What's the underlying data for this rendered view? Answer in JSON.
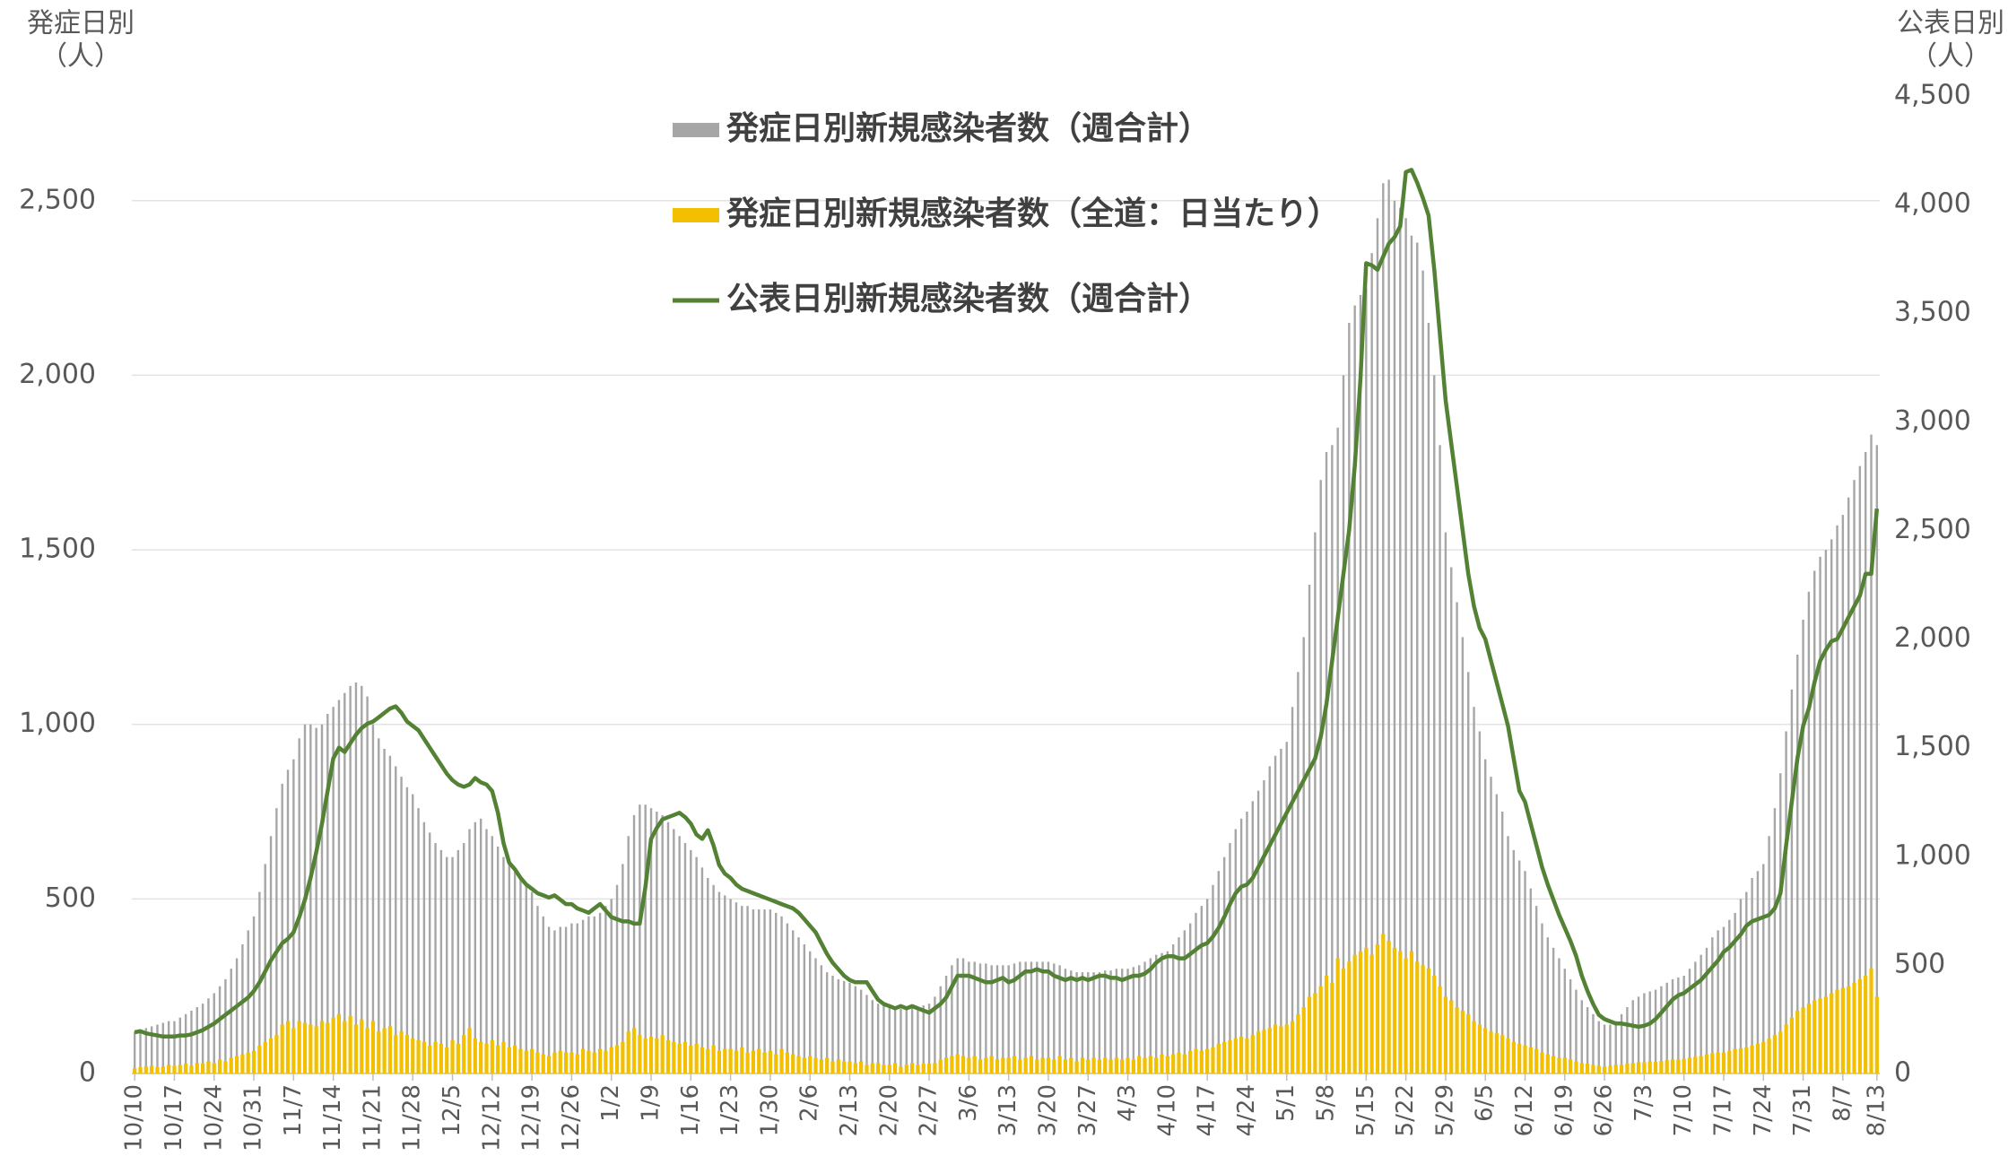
{
  "chart_data": {
    "type": "bar",
    "y_label": [
      "発症日別",
      "（人）"
    ],
    "y2_label": [
      "公表日別",
      "（人）"
    ],
    "categories": [
      "10/10",
      null,
      null,
      null,
      null,
      null,
      null,
      "10/17",
      null,
      null,
      null,
      null,
      null,
      null,
      "10/24",
      null,
      null,
      null,
      null,
      null,
      null,
      "10/31",
      null,
      null,
      null,
      null,
      null,
      null,
      "11/7",
      null,
      null,
      null,
      null,
      null,
      null,
      "11/14",
      null,
      null,
      null,
      null,
      null,
      null,
      "11/21",
      null,
      null,
      null,
      null,
      null,
      null,
      "11/28",
      null,
      null,
      null,
      null,
      null,
      null,
      "12/5",
      null,
      null,
      null,
      null,
      null,
      null,
      "12/12",
      null,
      null,
      null,
      null,
      null,
      null,
      "12/19",
      null,
      null,
      null,
      null,
      null,
      null,
      "12/26",
      null,
      null,
      null,
      null,
      null,
      null,
      "1/2",
      null,
      null,
      null,
      null,
      null,
      null,
      "1/9",
      null,
      null,
      null,
      null,
      null,
      null,
      "1/16",
      null,
      null,
      null,
      null,
      null,
      null,
      "1/23",
      null,
      null,
      null,
      null,
      null,
      null,
      "1/30",
      null,
      null,
      null,
      null,
      null,
      null,
      "2/6",
      null,
      null,
      null,
      null,
      null,
      null,
      "2/13",
      null,
      null,
      null,
      null,
      null,
      null,
      "2/20",
      null,
      null,
      null,
      null,
      null,
      null,
      "2/27",
      null,
      null,
      null,
      null,
      null,
      null,
      "3/6",
      null,
      null,
      null,
      null,
      null,
      null,
      "3/13",
      null,
      null,
      null,
      null,
      null,
      null,
      "3/20",
      null,
      null,
      null,
      null,
      null,
      null,
      "3/27",
      null,
      null,
      null,
      null,
      null,
      null,
      "4/3",
      null,
      null,
      null,
      null,
      null,
      null,
      "4/10",
      null,
      null,
      null,
      null,
      null,
      null,
      "4/17",
      null,
      null,
      null,
      null,
      null,
      null,
      "4/24",
      null,
      null,
      null,
      null,
      null,
      null,
      "5/1",
      null,
      null,
      null,
      null,
      null,
      null,
      "5/8",
      null,
      null,
      null,
      null,
      null,
      null,
      "5/15",
      null,
      null,
      null,
      null,
      null,
      null,
      "5/22",
      null,
      null,
      null,
      null,
      null,
      null,
      "5/29",
      null,
      null,
      null,
      null,
      null,
      null,
      "6/5",
      null,
      null,
      null,
      null,
      null,
      null,
      "6/12",
      null,
      null,
      null,
      null,
      null,
      null,
      "6/19",
      null,
      null,
      null,
      null,
      null,
      null,
      "6/26",
      null,
      null,
      null,
      null,
      null,
      null,
      "7/3",
      null,
      null,
      null,
      null,
      null,
      null,
      "7/10",
      null,
      null,
      null,
      null,
      null,
      null,
      "7/17",
      null,
      null,
      null,
      null,
      null,
      null,
      "7/24",
      null,
      null,
      null,
      null,
      null,
      null,
      "7/31",
      null,
      null,
      null,
      null,
      null,
      null,
      "8/7",
      null,
      null,
      null,
      null,
      null,
      "8/13"
    ],
    "series": [
      {
        "name": "発症日別新規感染者数（週合計）",
        "type": "bar",
        "color": "#a6a6a6",
        "values": [
          120,
          125,
          130,
          135,
          140,
          145,
          150,
          150,
          160,
          170,
          180,
          190,
          200,
          215,
          230,
          250,
          270,
          300,
          330,
          370,
          410,
          450,
          520,
          600,
          680,
          760,
          830,
          870,
          900,
          960,
          1000,
          1000,
          990,
          1000,
          1030,
          1050,
          1070,
          1090,
          1110,
          1120,
          1110,
          1080,
          1000,
          960,
          930,
          910,
          880,
          850,
          820,
          800,
          760,
          720,
          690,
          660,
          640,
          620,
          620,
          640,
          660,
          700,
          720,
          730,
          700,
          680,
          650,
          620,
          600,
          580,
          560,
          540,
          520,
          480,
          450,
          420,
          410,
          420,
          420,
          430,
          430,
          440,
          450,
          450,
          460,
          480,
          500,
          540,
          600,
          680,
          740,
          770,
          770,
          760,
          750,
          740,
          720,
          700,
          680,
          660,
          640,
          620,
          590,
          560,
          540,
          520,
          510,
          500,
          490,
          480,
          480,
          470,
          470,
          470,
          470,
          460,
          450,
          430,
          410,
          390,
          370,
          350,
          330,
          310,
          290,
          280,
          270,
          265,
          260,
          250,
          240,
          225,
          210,
          200,
          195,
          190,
          185,
          185,
          185,
          190,
          190,
          195,
          200,
          220,
          250,
          280,
          310,
          330,
          330,
          320,
          320,
          315,
          315,
          310,
          310,
          310,
          310,
          315,
          320,
          320,
          320,
          320,
          320,
          320,
          315,
          310,
          300,
          295,
          290,
          290,
          290,
          290,
          290,
          295,
          295,
          300,
          300,
          300,
          305,
          310,
          320,
          330,
          340,
          345,
          350,
          370,
          390,
          410,
          430,
          460,
          480,
          500,
          540,
          580,
          620,
          660,
          700,
          730,
          750,
          780,
          810,
          840,
          880,
          910,
          930,
          950,
          1050,
          1150,
          1250,
          1400,
          1550,
          1700,
          1780,
          1800,
          1850,
          2000,
          2150,
          2200,
          2230,
          2250,
          2350,
          2450,
          2550,
          2560,
          2500,
          2480,
          2450,
          2400,
          2380,
          2300,
          2150,
          2000,
          1800,
          1550,
          1450,
          1350,
          1250,
          1150,
          1050,
          980,
          900,
          850,
          800,
          750,
          680,
          640,
          610,
          580,
          530,
          480,
          430,
          390,
          360,
          330,
          300,
          270,
          240,
          210,
          190,
          170,
          150,
          140,
          140,
          150,
          170,
          190,
          210,
          220,
          230,
          235,
          240,
          250,
          260,
          270,
          275,
          280,
          300,
          320,
          340,
          360,
          390,
          410,
          420,
          440,
          460,
          500,
          520,
          560,
          580,
          600,
          680,
          760,
          860,
          980,
          1100,
          1200,
          1300,
          1380,
          1440,
          1480,
          1500,
          1530,
          1570,
          1600,
          1650,
          1700,
          1740,
          1780,
          1830,
          1800
        ]
      },
      {
        "name": "発症日別新規感染者数（全道：日当たり）",
        "type": "bar",
        "color": "#f2c000",
        "values": [
          15,
          18,
          20,
          22,
          18,
          20,
          25,
          22,
          25,
          28,
          22,
          30,
          28,
          35,
          30,
          40,
          35,
          45,
          50,
          55,
          60,
          65,
          80,
          90,
          100,
          110,
          140,
          150,
          130,
          150,
          145,
          140,
          135,
          150,
          145,
          160,
          170,
          150,
          165,
          140,
          155,
          130,
          150,
          120,
          130,
          135,
          110,
          120,
          110,
          100,
          95,
          90,
          80,
          90,
          85,
          75,
          95,
          85,
          110,
          130,
          100,
          90,
          85,
          95,
          80,
          90,
          75,
          80,
          70,
          65,
          70,
          60,
          55,
          50,
          60,
          65,
          60,
          60,
          55,
          70,
          65,
          60,
          70,
          65,
          75,
          80,
          90,
          120,
          130,
          110,
          100,
          105,
          100,
          110,
          95,
          90,
          85,
          90,
          80,
          85,
          75,
          70,
          80,
          65,
          70,
          70,
          65,
          75,
          60,
          65,
          70,
          60,
          65,
          55,
          70,
          60,
          55,
          50,
          45,
          50,
          45,
          40,
          45,
          35,
          40,
          35,
          35,
          30,
          35,
          25,
          30,
          30,
          25,
          25,
          30,
          20,
          25,
          30,
          25,
          28,
          28,
          30,
          40,
          45,
          50,
          55,
          50,
          45,
          50,
          40,
          45,
          50,
          40,
          45,
          45,
          50,
          40,
          45,
          50,
          40,
          45,
          45,
          40,
          50,
          40,
          45,
          35,
          45,
          40,
          45,
          40,
          45,
          40,
          45,
          40,
          45,
          40,
          50,
          45,
          50,
          45,
          55,
          50,
          55,
          60,
          55,
          65,
          70,
          65,
          70,
          75,
          85,
          90,
          95,
          100,
          105,
          100,
          110,
          120,
          125,
          130,
          140,
          135,
          140,
          150,
          170,
          190,
          220,
          230,
          250,
          280,
          260,
          330,
          300,
          320,
          340,
          350,
          360,
          340,
          370,
          400,
          380,
          360,
          350,
          330,
          350,
          320,
          310,
          300,
          280,
          250,
          220,
          210,
          190,
          180,
          170,
          150,
          140,
          130,
          120,
          115,
          110,
          100,
          90,
          85,
          80,
          75,
          70,
          60,
          55,
          50,
          45,
          45,
          40,
          35,
          30,
          28,
          25,
          22,
          20,
          22,
          25,
          25,
          28,
          30,
          32,
          32,
          35,
          33,
          36,
          38,
          40,
          40,
          42,
          45,
          48,
          50,
          55,
          58,
          60,
          60,
          65,
          70,
          72,
          75,
          80,
          85,
          90,
          100,
          110,
          120,
          140,
          160,
          180,
          190,
          200,
          210,
          215,
          220,
          230,
          240,
          245,
          250,
          260,
          270,
          280,
          300,
          220
        ]
      },
      {
        "name": "公表日別新規感染者数（週合計）",
        "type": "line",
        "axis": "y2",
        "color": "#548235",
        "values": [
          190,
          195,
          185,
          180,
          175,
          170,
          170,
          170,
          175,
          175,
          180,
          190,
          200,
          215,
          230,
          250,
          270,
          290,
          310,
          330,
          350,
          380,
          420,
          470,
          520,
          560,
          600,
          620,
          650,
          720,
          800,
          900,
          1020,
          1150,
          1300,
          1450,
          1500,
          1480,
          1520,
          1560,
          1590,
          1610,
          1620,
          1640,
          1660,
          1680,
          1690,
          1660,
          1620,
          1600,
          1580,
          1540,
          1500,
          1460,
          1420,
          1380,
          1350,
          1330,
          1320,
          1330,
          1360,
          1340,
          1330,
          1300,
          1200,
          1060,
          970,
          940,
          900,
          870,
          850,
          830,
          820,
          810,
          820,
          800,
          780,
          780,
          760,
          750,
          740,
          760,
          780,
          750,
          720,
          710,
          700,
          700,
          690,
          690,
          860,
          1080,
          1130,
          1170,
          1180,
          1190,
          1200,
          1180,
          1150,
          1100,
          1080,
          1120,
          1050,
          960,
          920,
          900,
          870,
          850,
          840,
          830,
          820,
          810,
          800,
          790,
          780,
          770,
          760,
          740,
          710,
          680,
          650,
          600,
          550,
          510,
          480,
          450,
          430,
          420,
          420,
          420,
          380,
          340,
          320,
          310,
          300,
          310,
          300,
          310,
          300,
          290,
          280,
          300,
          320,
          350,
          400,
          450,
          450,
          450,
          440,
          430,
          420,
          420,
          430,
          440,
          420,
          430,
          450,
          470,
          470,
          480,
          470,
          470,
          450,
          440,
          430,
          440,
          430,
          440,
          430,
          440,
          450,
          450,
          440,
          440,
          430,
          440,
          450,
          450,
          460,
          480,
          510,
          530,
          540,
          540,
          530,
          530,
          550,
          570,
          590,
          600,
          630,
          670,
          720,
          780,
          830,
          860,
          870,
          900,
          950,
          1000,
          1050,
          1100,
          1150,
          1200,
          1250,
          1300,
          1350,
          1400,
          1450,
          1550,
          1700,
          1900,
          2100,
          2300,
          2500,
          2800,
          3200,
          3730,
          3720,
          3700,
          3760,
          3820,
          3850,
          3900,
          4150,
          4160,
          4100,
          4030,
          3950,
          3700,
          3400,
          3100,
          2900,
          2700,
          2500,
          2300,
          2150,
          2050,
          2000,
          1900,
          1800,
          1700,
          1600,
          1450,
          1300,
          1250,
          1150,
          1050,
          950,
          870,
          800,
          730,
          670,
          610,
          540,
          450,
          380,
          320,
          270,
          250,
          240,
          230,
          230,
          225,
          220,
          215,
          220,
          230,
          250,
          280,
          310,
          340,
          360,
          370,
          390,
          410,
          430,
          460,
          490,
          520,
          560,
          580,
          610,
          640,
          680,
          700,
          710,
          720,
          730,
          760,
          830,
          1050,
          1250,
          1450,
          1600,
          1680,
          1800,
          1900,
          1950,
          1990,
          2000,
          2050,
          2100,
          2150,
          2200,
          2300,
          2300,
          2600
        ]
      }
    ],
    "ylim": [
      0,
      2800
    ],
    "yticks": [
      0,
      500,
      {
        "value": 1000,
        "label": "1,000"
      },
      {
        "value": 1500,
        "label": "1,500"
      },
      {
        "value": 2000,
        "label": "2,000"
      },
      {
        "value": 2500,
        "label": "2,500"
      }
    ],
    "y2lim": [
      0,
      4500
    ],
    "y2ticks": [
      0,
      500,
      {
        "value": 1000,
        "label": "1,000"
      },
      {
        "value": 1500,
        "label": "1,500"
      },
      {
        "value": 2000,
        "label": "2,000"
      },
      {
        "value": 2500,
        "label": "2,500"
      },
      {
        "value": 3000,
        "label": "3,000"
      },
      {
        "value": 3500,
        "label": "3,500"
      },
      {
        "value": 4000,
        "label": "4,000"
      },
      {
        "value": 4500,
        "label": "4,500"
      }
    ],
    "grid": true,
    "legend": "top"
  }
}
